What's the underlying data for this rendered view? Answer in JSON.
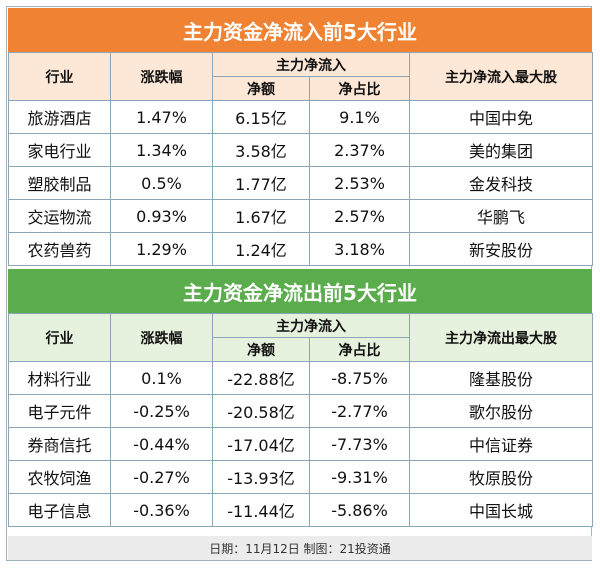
{
  "inflow": {
    "title": "主力资金净流入前5大行业",
    "headers": {
      "industry": "行业",
      "change": "涨跌幅",
      "group": "主力净流入",
      "amount": "净额",
      "ratio": "净占比",
      "top_stock": "主力净流入最大股"
    },
    "rows": [
      {
        "industry": "旅游酒店",
        "change": "1.47%",
        "amount": "6.15亿",
        "ratio": "9.1%",
        "stock": "中国中免"
      },
      {
        "industry": "家电行业",
        "change": "1.34%",
        "amount": "3.58亿",
        "ratio": "2.37%",
        "stock": "美的集团"
      },
      {
        "industry": "塑胶制品",
        "change": "0.5%",
        "amount": "1.77亿",
        "ratio": "2.53%",
        "stock": "金发科技"
      },
      {
        "industry": "交运物流",
        "change": "0.93%",
        "amount": "1.67亿",
        "ratio": "2.57%",
        "stock": "华鹏飞"
      },
      {
        "industry": "农药兽药",
        "change": "1.29%",
        "amount": "1.24亿",
        "ratio": "3.18%",
        "stock": "新安股份"
      }
    ]
  },
  "outflow": {
    "title": "主力资金净流出前5大行业",
    "headers": {
      "industry": "行业",
      "change": "涨跌幅",
      "group": "主力净流入",
      "amount": "净额",
      "ratio": "净占比",
      "top_stock": "主力净流出最大股"
    },
    "rows": [
      {
        "industry": "材料行业",
        "change": "0.1%",
        "amount": "-22.88亿",
        "ratio": "-8.75%",
        "stock": "隆基股份"
      },
      {
        "industry": "电子元件",
        "change": "-0.25%",
        "amount": "-20.58亿",
        "ratio": "-2.77%",
        "stock": "歌尔股份"
      },
      {
        "industry": "券商信托",
        "change": "-0.44%",
        "amount": "-17.04亿",
        "ratio": "-7.73%",
        "stock": "中信证券"
      },
      {
        "industry": "农牧饲渔",
        "change": "-0.27%",
        "amount": "-13.93亿",
        "ratio": "-9.31%",
        "stock": "牧原股份"
      },
      {
        "industry": "电子信息",
        "change": "-0.36%",
        "amount": "-11.44亿",
        "ratio": "-5.86%",
        "stock": "中国长城"
      }
    ]
  },
  "footer": "日期：11月12日 制图：21投资通",
  "colors": {
    "inflow_title": "#ef8233",
    "outflow_title": "#5bac4c"
  }
}
